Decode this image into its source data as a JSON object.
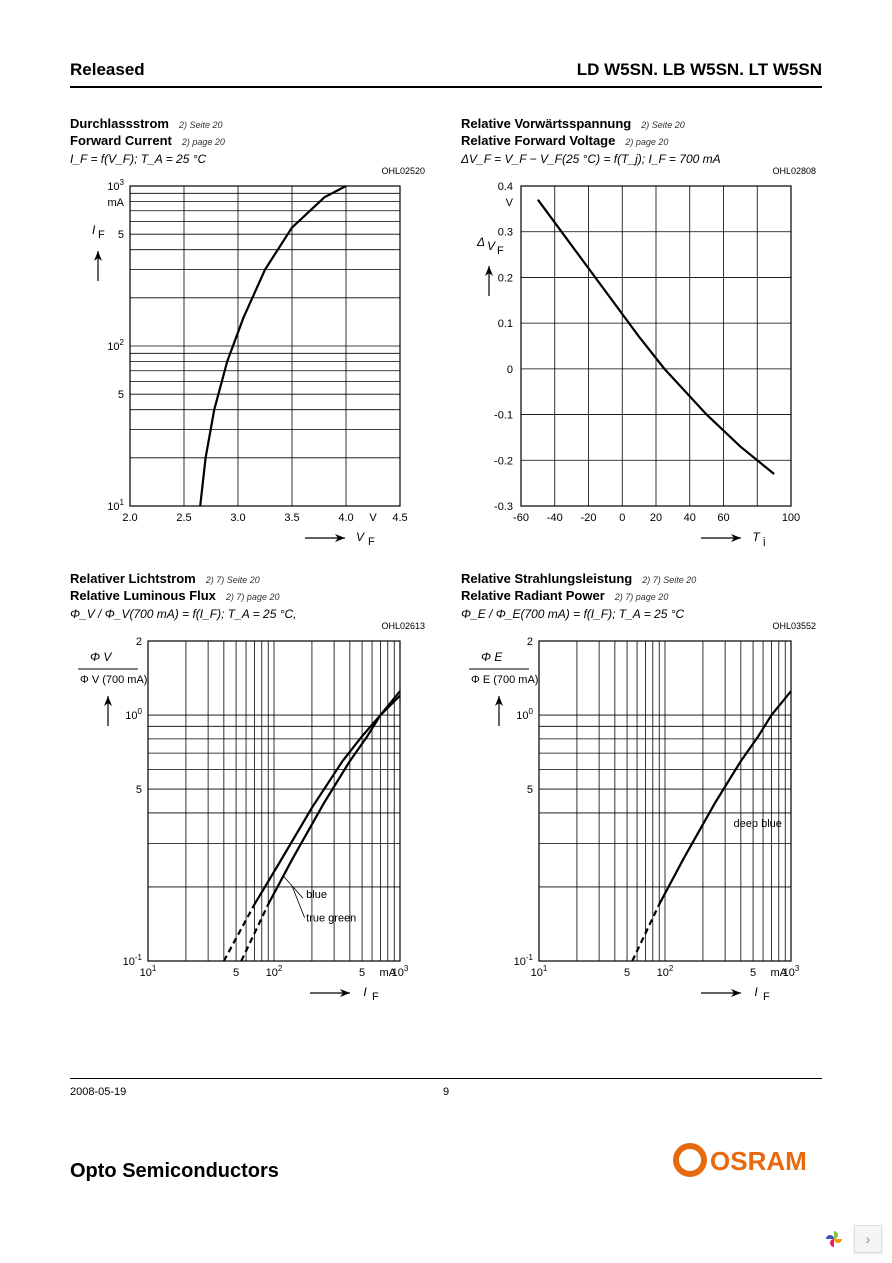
{
  "header": {
    "left": "Released",
    "right": "LD W5SN.    LB W5SN. LT W5SN"
  },
  "footer": {
    "date": "2008-05-19",
    "page": "9",
    "brand": "Opto Semiconductors",
    "logo_text": "OSRAM",
    "logo_color": "#e86a0f"
  },
  "charts": {
    "c1": {
      "title_de": "Durchlassstrom",
      "title_en": "Forward Current",
      "note_de": "2) Seite 20",
      "note_en": "2) page 20",
      "formula": "I_F = f(V_F);  T_A = 25 °C",
      "id": "OHL02520",
      "x": {
        "label": "V_F",
        "unit": "V",
        "min": 2.0,
        "max": 4.5,
        "ticks": [
          "2.0",
          "2.5",
          "3.0",
          "3.5",
          "4.0",
          "V",
          "4.5"
        ]
      },
      "y": {
        "label": "I_F",
        "unit": "mA",
        "type": "log",
        "min": 10,
        "max": 1000,
        "ticks": [
          "10 1",
          "5",
          "10 2",
          "5",
          "10 3"
        ],
        "extra": "mA"
      },
      "curve": [
        [
          2.65,
          10
        ],
        [
          2.7,
          20
        ],
        [
          2.78,
          40
        ],
        [
          2.9,
          80
        ],
        [
          3.05,
          150
        ],
        [
          3.25,
          300
        ],
        [
          3.5,
          550
        ],
        [
          3.8,
          850
        ],
        [
          4.0,
          1000
        ]
      ]
    },
    "c2": {
      "title_de": "Relative Vorwärtsspannung",
      "title_en": "Relative Forward Voltage",
      "note_de": "2) Seite 20",
      "note_en": "2) page 20",
      "formula": "ΔV_F = V_F − V_F(25 °C) = f(T_j);  I_F = 700 mA",
      "id": "OHL02808",
      "x": {
        "label": "T_j",
        "unit": "",
        "min": -60,
        "max": 100,
        "step": 20,
        "ticks": [
          "-60",
          "-40",
          "-20",
          "0",
          "20",
          "40",
          "60",
          "",
          "100"
        ]
      },
      "y": {
        "label": "ΔV_F",
        "unit": "V",
        "type": "linear",
        "min": -0.3,
        "max": 0.4,
        "step": 0.1,
        "ticks": [
          "-0.3",
          "-0.2",
          "-0.1",
          "0",
          "0.1",
          "0.2",
          "0.3",
          "0.4"
        ],
        "extra": "V"
      },
      "curve": [
        [
          -50,
          0.37
        ],
        [
          -30,
          0.27
        ],
        [
          -10,
          0.17
        ],
        [
          10,
          0.07
        ],
        [
          25,
          0
        ],
        [
          50,
          -0.1
        ],
        [
          70,
          -0.17
        ],
        [
          90,
          -0.23
        ]
      ]
    },
    "c3": {
      "title_de": "Relativer Lichtstrom",
      "title_en": "Relative Luminous Flux",
      "note_de": "2) 7) Seite 20",
      "note_en": "2) 7) page 20",
      "formula": "Φ_V / Φ_V(700 mA) = f(I_F);  T_A = 25 °C,",
      "id": "OHL02613",
      "x": {
        "label": "I_F",
        "unit": "mA",
        "type": "log",
        "min": 10,
        "max": 1000,
        "ticks": [
          "10 1",
          "5",
          "10 2",
          "5",
          "mA",
          "10 3"
        ]
      },
      "y": {
        "label": "Φ_V / Φ_V (700 mA)",
        "type": "log",
        "min": 0.1,
        "max": 2,
        "ticks": [
          "10 -1",
          "5",
          "10 0",
          "2"
        ]
      },
      "curves": {
        "blue": {
          "label": "blue",
          "data": [
            [
              40,
              0.1
            ],
            [
              70,
              0.17
            ],
            [
              110,
              0.25
            ],
            [
              200,
              0.42
            ],
            [
              350,
              0.65
            ],
            [
              500,
              0.82
            ],
            [
              700,
              1.0
            ],
            [
              1000,
              1.25
            ]
          ]
        },
        "true_green": {
          "label": "true green",
          "data": [
            [
              55,
              0.1
            ],
            [
              90,
              0.17
            ],
            [
              140,
              0.26
            ],
            [
              250,
              0.44
            ],
            [
              400,
              0.65
            ],
            [
              550,
              0.82
            ],
            [
              700,
              1.0
            ],
            [
              1000,
              1.2
            ]
          ]
        }
      },
      "dash_below": 100
    },
    "c4": {
      "title_de": "Relative Strahlungsleistung",
      "title_en": "Relative Radiant Power",
      "note_de": "2) 7) Seite 20",
      "note_en": "2) 7) page 20",
      "formula": "Φ_E / Φ_E(700 mA) = f(I_F);  T_A = 25 °C",
      "id": "OHL03552",
      "x": {
        "label": "I_F",
        "unit": "mA",
        "type": "log",
        "min": 10,
        "max": 1000,
        "ticks": [
          "10 1",
          "5",
          "10 2",
          "5",
          "mA",
          "10 3"
        ]
      },
      "y": {
        "label": "Φ_E / Φ_E (700 mA)",
        "type": "log",
        "min": 0.1,
        "max": 2,
        "ticks": [
          "10 -1",
          "5",
          "10 0",
          "2"
        ]
      },
      "curves": {
        "deep_blue": {
          "label": "deep blue",
          "data": [
            [
              55,
              0.1
            ],
            [
              90,
              0.17
            ],
            [
              140,
              0.26
            ],
            [
              250,
              0.44
            ],
            [
              400,
              0.65
            ],
            [
              550,
              0.82
            ],
            [
              700,
              1.0
            ],
            [
              1000,
              1.25
            ]
          ]
        }
      },
      "dash_below": 100
    }
  },
  "colors": {
    "text": "#000000",
    "grid": "#000000",
    "curve": "#000000",
    "bg": "#ffffff"
  }
}
